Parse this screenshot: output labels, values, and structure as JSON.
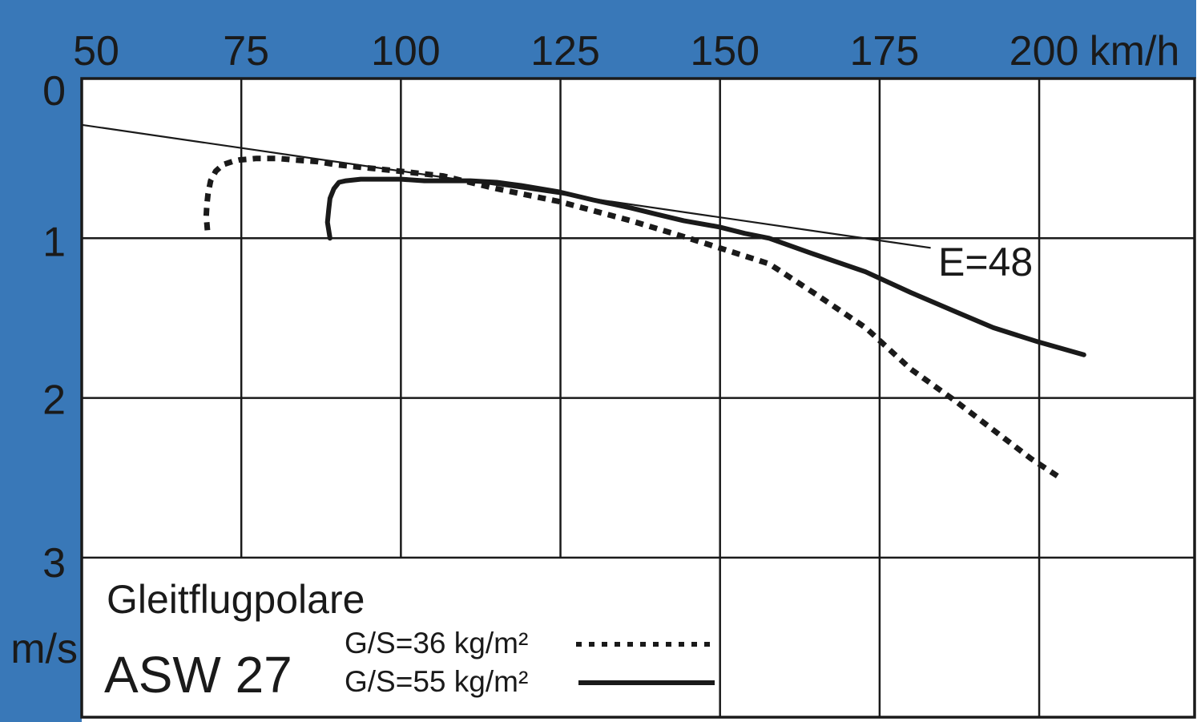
{
  "page": {
    "background_color": "#ffffff",
    "band_color": "#3978b8",
    "ink_color": "#1a1a1a"
  },
  "chart_data": {
    "type": "line",
    "title": "Gleitflugpolare",
    "model": "ASW 27",
    "grid": true,
    "x_axis": {
      "unit_label": "km/h",
      "ticks": [
        50,
        75,
        100,
        125,
        150,
        175,
        200
      ],
      "range": [
        50,
        224
      ],
      "position": "top"
    },
    "y_axis": {
      "unit_label": "m/s",
      "ticks": [
        0,
        1,
        2,
        3
      ],
      "range": [
        0,
        4
      ],
      "direction": "down"
    },
    "annotation": {
      "text": "E=48",
      "v": 184,
      "s": 1.05
    },
    "series": [
      {
        "name": "G/S=36 kg/m²",
        "line_style": "dashed",
        "points": [
          [
            69.7,
            0.95
          ],
          [
            69.5,
            0.86
          ],
          [
            69.6,
            0.79
          ],
          [
            69.8,
            0.72
          ],
          [
            70.2,
            0.64
          ],
          [
            71.0,
            0.58
          ],
          [
            72.1,
            0.54
          ],
          [
            73.6,
            0.52
          ],
          [
            74.7,
            0.51
          ],
          [
            77.4,
            0.5
          ],
          [
            80.8,
            0.5
          ],
          [
            83.3,
            0.51
          ],
          [
            86.8,
            0.52
          ],
          [
            89.9,
            0.54
          ],
          [
            94.9,
            0.56
          ],
          [
            99.8,
            0.58
          ],
          [
            106.6,
            0.61
          ],
          [
            115.0,
            0.69
          ],
          [
            124.8,
            0.77
          ],
          [
            136.0,
            0.89
          ],
          [
            144.3,
            0.99
          ],
          [
            149.9,
            1.06
          ],
          [
            157.7,
            1.16
          ],
          [
            165.0,
            1.35
          ],
          [
            172.8,
            1.56
          ],
          [
            179.9,
            1.82
          ],
          [
            186.9,
            2.02
          ],
          [
            192.8,
            2.2
          ],
          [
            198.7,
            2.38
          ],
          [
            203.3,
            2.5
          ]
        ]
      },
      {
        "name": "G/S=55 kg/m²",
        "line_style": "solid",
        "points": [
          [
            88.9,
            1.0
          ],
          [
            88.5,
            0.9
          ],
          [
            88.7,
            0.82
          ],
          [
            88.9,
            0.75
          ],
          [
            89.5,
            0.69
          ],
          [
            90.3,
            0.65
          ],
          [
            91.4,
            0.64
          ],
          [
            93.7,
            0.63
          ],
          [
            96.8,
            0.63
          ],
          [
            100.0,
            0.63
          ],
          [
            103.7,
            0.64
          ],
          [
            107.5,
            0.64
          ],
          [
            110.9,
            0.64
          ],
          [
            115.0,
            0.65
          ],
          [
            118.8,
            0.67
          ],
          [
            124.8,
            0.71
          ],
          [
            130.1,
            0.76
          ],
          [
            136.0,
            0.81
          ],
          [
            140.1,
            0.85
          ],
          [
            144.3,
            0.89
          ],
          [
            149.9,
            0.93
          ],
          [
            153.9,
            0.97
          ],
          [
            157.7,
            1.0
          ],
          [
            164.0,
            1.09
          ],
          [
            172.8,
            1.21
          ],
          [
            179.9,
            1.34
          ],
          [
            186.9,
            1.46
          ],
          [
            192.8,
            1.56
          ],
          [
            199.9,
            1.65
          ],
          [
            207.0,
            1.73
          ]
        ]
      },
      {
        "name": "best-glide tangent E=48",
        "line_style": "thin",
        "points": [
          [
            50,
            0.29
          ],
          [
            183,
            1.06
          ]
        ]
      }
    ],
    "legend": {
      "position": "bottom-left-cell"
    }
  }
}
